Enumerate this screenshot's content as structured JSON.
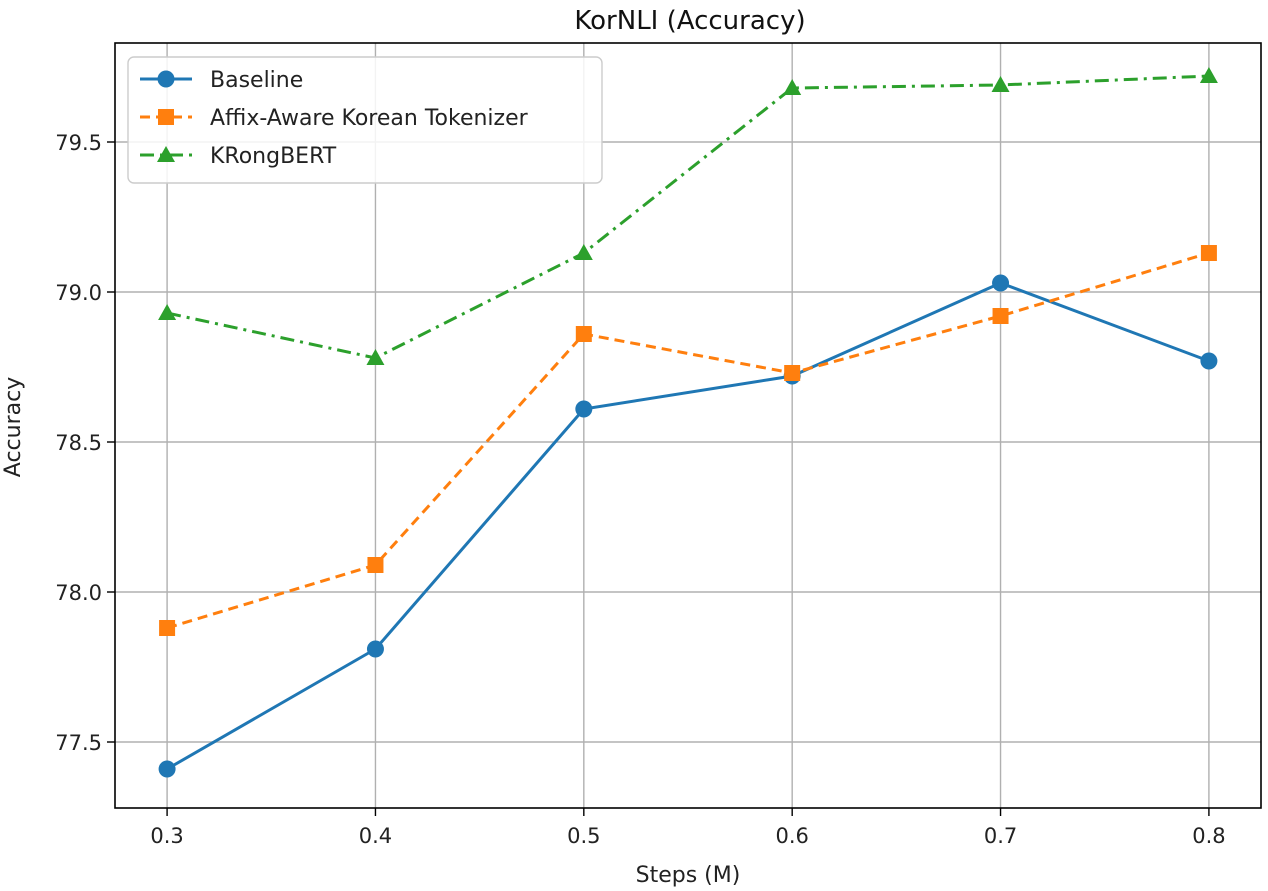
{
  "chart_data": {
    "type": "line",
    "title": "KorNLI (Accuracy)",
    "xlabel": "Steps (M)",
    "ylabel": "Accuracy",
    "x": [
      0.3,
      0.4,
      0.5,
      0.6,
      0.7,
      0.8
    ],
    "x_tick_labels": [
      "0.3",
      "0.4",
      "0.5",
      "0.6",
      "0.7",
      "0.8"
    ],
    "y_ticks": [
      77.5,
      78.0,
      78.5,
      79.0,
      79.5
    ],
    "y_tick_labels": [
      "77.5",
      "78.0",
      "78.5",
      "79.0",
      "79.5"
    ],
    "xlim": [
      0.275,
      0.825
    ],
    "ylim": [
      77.28,
      79.83
    ],
    "grid": true,
    "legend_position": "top-left",
    "series": [
      {
        "name": "Baseline",
        "values": [
          77.41,
          77.81,
          78.61,
          78.72,
          79.03,
          78.77
        ],
        "color": "#1f77b4",
        "line_style": "solid",
        "marker": "circle"
      },
      {
        "name": "Affix-Aware Korean Tokenizer",
        "values": [
          77.88,
          78.09,
          78.86,
          78.73,
          78.92,
          79.13
        ],
        "color": "#ff7f0e",
        "line_style": "dashed",
        "marker": "square"
      },
      {
        "name": "KRongBERT",
        "values": [
          78.93,
          78.78,
          79.13,
          79.68,
          79.69,
          79.72
        ],
        "color": "#2ca02c",
        "line_style": "dashdot",
        "marker": "triangle"
      }
    ]
  }
}
